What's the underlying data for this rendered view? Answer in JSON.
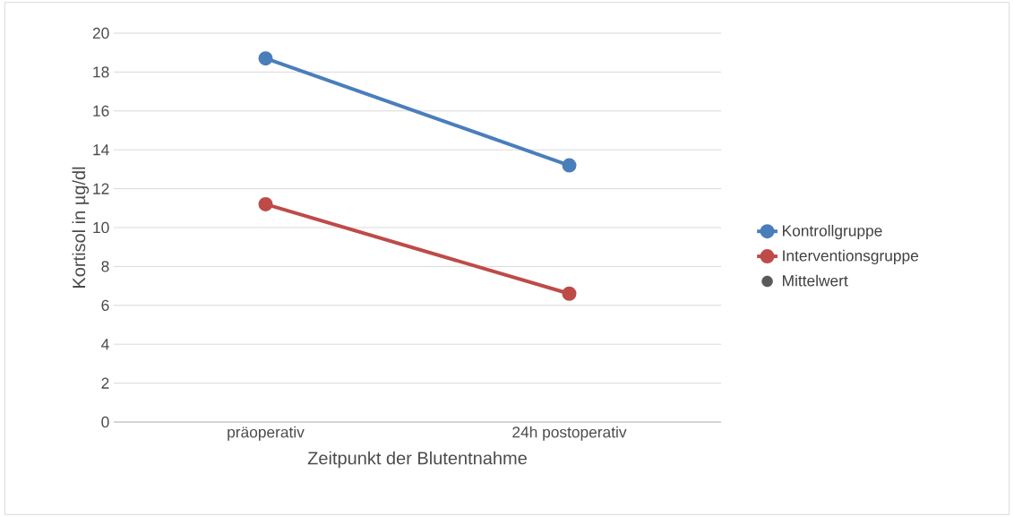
{
  "chart_data": {
    "type": "line",
    "xlabel": "Zeitpunkt der Blutentnahme",
    "ylabel": "Kortisol in µg/dl",
    "categories": [
      "präoperativ",
      "24h postoperativ"
    ],
    "series": [
      {
        "name": "Kontrollgruppe",
        "color": "#4a7ebb",
        "values": [
          18.7,
          13.2
        ]
      },
      {
        "name": "Interventionsgruppe",
        "color": "#be4b48",
        "values": [
          11.2,
          6.6
        ]
      },
      {
        "name": "Mittelwert",
        "color": "#595959",
        "type": "scatter",
        "values": [
          null,
          null
        ]
      }
    ],
    "ylim": [
      0,
      20
    ],
    "yticks": [
      0,
      2,
      4,
      6,
      8,
      10,
      12,
      14,
      16,
      18,
      20
    ],
    "grid": "y",
    "legend": "right",
    "marker": "circle"
  }
}
